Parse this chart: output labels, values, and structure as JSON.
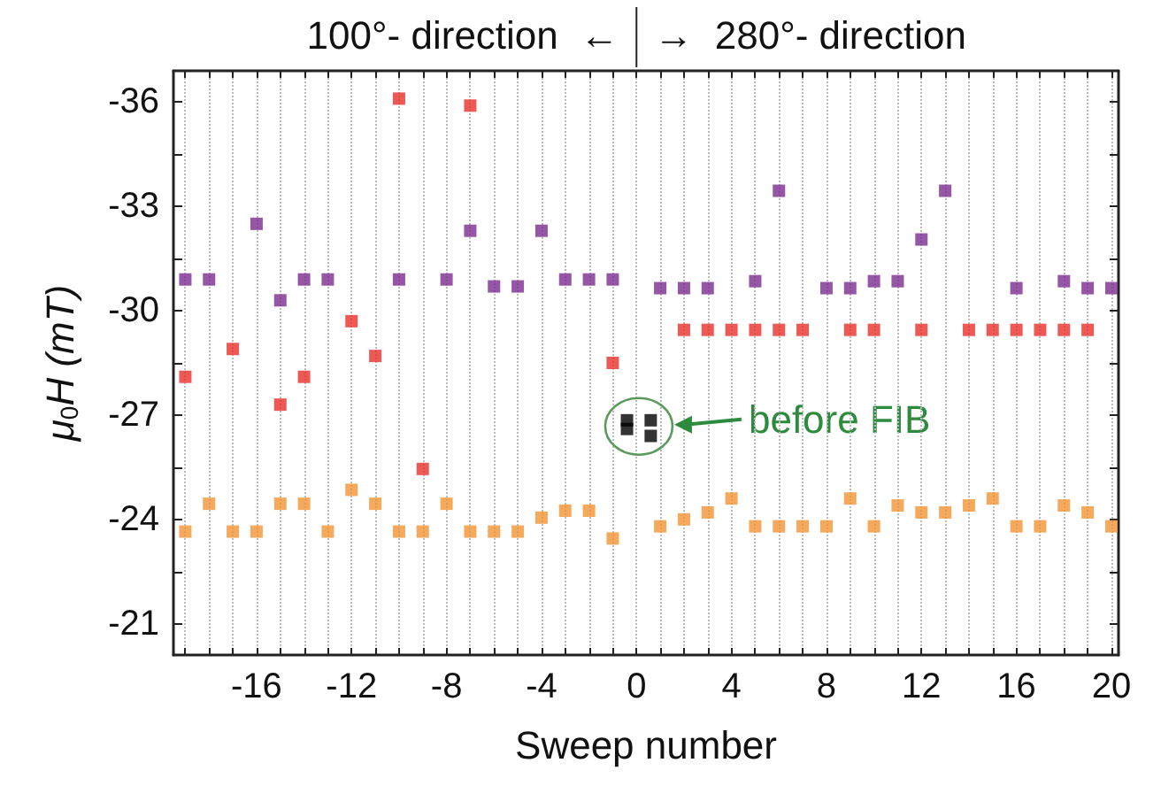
{
  "chart_data": {
    "type": "scatter",
    "xlabel": "Sweep number",
    "ylabel": "μ$_{0}$H (mT)",
    "annotations": [
      "100°- direction  ←",
      "→  280°- direction",
      "before FIB"
    ],
    "xlim": [
      -19.5,
      20.3
    ],
    "ylim": [
      -20.1,
      -36.9
    ],
    "xticks": [
      {
        "value": -19,
        "label": null
      },
      {
        "value": -18,
        "label": null
      },
      {
        "value": -17,
        "label": null
      },
      -16,
      {
        "value": -15,
        "label": null
      },
      {
        "value": -14,
        "label": null
      },
      {
        "value": -13,
        "label": null
      },
      -12,
      {
        "value": -11,
        "label": null
      },
      {
        "value": -10,
        "label": null
      },
      {
        "value": -9,
        "label": null
      },
      -8,
      {
        "value": -7,
        "label": null
      },
      {
        "value": -6,
        "label": null
      },
      {
        "value": -5,
        "label": null
      },
      -4,
      {
        "value": -3,
        "label": null
      },
      {
        "value": -2,
        "label": null
      },
      {
        "value": -1,
        "label": null
      },
      0,
      {
        "value": 1,
        "label": null
      },
      {
        "value": 2,
        "label": null
      },
      {
        "value": 3,
        "label": null
      },
      4,
      {
        "value": 5,
        "label": null
      },
      {
        "value": 6,
        "label": null
      },
      {
        "value": 7,
        "label": null
      },
      8,
      {
        "value": 9,
        "label": null
      },
      {
        "value": 10,
        "label": null
      },
      {
        "value": 11,
        "label": null
      },
      12,
      {
        "value": 13,
        "label": null
      },
      {
        "value": 14,
        "label": null
      },
      {
        "value": 15,
        "label": null
      },
      16,
      {
        "value": 17,
        "label": null
      },
      {
        "value": 18,
        "label": null
      },
      {
        "value": 19,
        "label": null
      },
      20
    ],
    "yticks": [
      -36,
      {
        "value": -34.5,
        "label": null
      },
      -33,
      {
        "value": -31.5,
        "label": null
      },
      -30,
      {
        "value": -28.5,
        "label": null
      },
      -27,
      {
        "value": -25.5,
        "label": null
      },
      -24,
      {
        "value": -22.5,
        "label": null
      },
      -21
    ],
    "grid": "x",
    "marker": "square",
    "series": [
      {
        "color": "#7b2c8f",
        "x": [
          -19,
          -18,
          -16,
          -15,
          -14,
          -13,
          -10,
          -8,
          -7,
          -6,
          -5,
          -4,
          -3,
          -2,
          -1,
          1,
          2,
          3,
          5,
          6,
          8,
          9,
          10,
          11,
          12,
          13,
          16,
          18,
          19,
          20
        ],
        "values": [
          -30.9,
          -30.9,
          -32.5,
          -30.3,
          -30.9,
          -30.9,
          -30.9,
          -30.9,
          -32.3,
          -30.7,
          -30.7,
          -32.3,
          -30.9,
          -30.9,
          -30.9,
          -30.65,
          -30.65,
          -30.65,
          -30.85,
          -33.45,
          -30.65,
          -30.65,
          -30.85,
          -30.85,
          -32.05,
          -33.45,
          -30.65,
          -30.85,
          -30.65,
          -30.65
        ]
      },
      {
        "color": "#e8312b",
        "x": [
          -19,
          -17,
          -15,
          -14,
          -12,
          -11,
          -10,
          -9,
          -7,
          -1,
          2,
          3,
          4,
          5,
          6,
          7,
          9,
          10,
          12,
          14,
          15,
          16,
          17,
          18,
          19
        ],
        "values": [
          -28.1,
          -28.9,
          -27.3,
          -28.1,
          -29.7,
          -28.7,
          -36.1,
          -25.45,
          -35.9,
          -28.5,
          -29.45,
          -29.45,
          -29.45,
          -29.45,
          -29.45,
          -29.45,
          -29.45,
          -29.45,
          -29.45,
          -29.45,
          -29.45,
          -29.45,
          -29.45,
          -29.45,
          -29.45
        ]
      },
      {
        "color": "#f39433",
        "x": [
          -19,
          -18,
          -17,
          -16,
          -15,
          -14,
          -13,
          -12,
          -11,
          -10,
          -9,
          -8,
          -7,
          -6,
          -5,
          -4,
          -3,
          -2,
          -1,
          1,
          2,
          3,
          4,
          5,
          6,
          7,
          8,
          9,
          10,
          11,
          12,
          13,
          14,
          15,
          16,
          17,
          18,
          19,
          20
        ],
        "values": [
          -23.65,
          -24.45,
          -23.65,
          -23.65,
          -24.45,
          -24.45,
          -23.65,
          -24.85,
          -24.45,
          -23.65,
          -23.65,
          -24.45,
          -23.65,
          -23.65,
          -23.65,
          -24.05,
          -24.25,
          -24.25,
          -23.45,
          -23.8,
          -24.0,
          -24.2,
          -24.6,
          -23.8,
          -23.8,
          -23.8,
          -23.8,
          -24.6,
          -23.8,
          -24.4,
          -24.2,
          -24.2,
          -24.4,
          -24.6,
          -23.8,
          -23.8,
          -24.4,
          -24.2,
          -23.8
        ]
      },
      {
        "color": "#000000",
        "x": [
          -0.4,
          -0.4,
          0.6,
          0.6
        ],
        "values": [
          -26.85,
          -26.6,
          -26.85,
          -26.4
        ]
      }
    ]
  }
}
